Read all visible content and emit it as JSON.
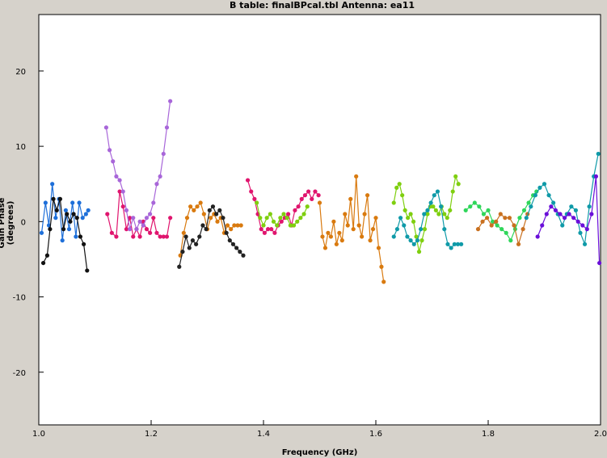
{
  "chart_data": {
    "type": "scatter",
    "title": "B table: finalBPcal.tbl   Antenna: ea11",
    "xlabel": "Frequency (GHz)",
    "ylabel": "Gain Phase (degrees)",
    "xlim": [
      1.0,
      2.0
    ],
    "ylim": [
      -27,
      27.5
    ],
    "xticks": [
      1.0,
      1.2,
      1.4,
      1.6,
      1.8,
      2.0
    ],
    "xtick_labels": [
      "1.0",
      "1.2",
      "1.4",
      "1.6",
      "1.8",
      "2.0"
    ],
    "yticks": [
      20,
      10,
      0,
      -10,
      -20
    ],
    "ytick_labels": [
      "20",
      "10",
      "0",
      "-10",
      "-20"
    ],
    "grid": false,
    "series": [
      {
        "color": "#1e6fd9",
        "x": [
          1.005,
          1.012,
          1.018,
          1.024,
          1.03,
          1.036,
          1.042,
          1.048,
          1.054,
          1.06,
          1.066,
          1.072,
          1.078,
          1.084,
          1.088
        ],
        "y": [
          -1.5,
          2.5,
          -0.5,
          5.0,
          0.5,
          3.0,
          -2.5,
          1.5,
          -1.0,
          2.5,
          -2.0,
          2.5,
          0.5,
          1.0,
          1.5
        ]
      },
      {
        "color": "#111111",
        "x": [
          1.008,
          1.015,
          1.02,
          1.026,
          1.032,
          1.038,
          1.044,
          1.05,
          1.056,
          1.062,
          1.068,
          1.074,
          1.08,
          1.086
        ],
        "y": [
          -5.5,
          -4.5,
          -1.0,
          3.0,
          1.5,
          3.0,
          -1.0,
          1.0,
          0.0,
          1.0,
          0.5,
          -2.0,
          -3.0,
          -6.5
        ]
      },
      {
        "color": "#e0156e",
        "x": [
          1.122,
          1.13,
          1.138,
          1.144,
          1.15,
          1.156,
          1.162,
          1.168,
          1.174,
          1.18,
          1.186,
          1.192,
          1.198,
          1.204,
          1.21,
          1.216,
          1.222,
          1.228,
          1.234
        ],
        "y": [
          1.0,
          -1.5,
          -2.0,
          4.0,
          2.0,
          -1.0,
          0.5,
          -2.0,
          -1.0,
          -2.0,
          0.0,
          -1.0,
          -1.5,
          0.5,
          -1.5,
          -2.0,
          -2.0,
          -2.0,
          0.5
        ]
      },
      {
        "color": "#a866d9",
        "x": [
          1.12,
          1.126,
          1.132,
          1.138,
          1.144,
          1.15,
          1.156,
          1.162,
          1.168,
          1.174,
          1.18,
          1.186,
          1.192,
          1.198,
          1.204,
          1.21,
          1.216,
          1.222,
          1.228,
          1.234
        ],
        "y": [
          12.5,
          9.5,
          8.0,
          6.0,
          5.5,
          4.0,
          1.5,
          -1.0,
          0.5,
          -1.0,
          0.0,
          -0.5,
          0.5,
          1.0,
          2.5,
          5.0,
          6.0,
          9.0,
          12.5,
          16.0
        ]
      },
      {
        "color": "#d97a0f",
        "x": [
          1.252,
          1.258,
          1.264,
          1.27,
          1.276,
          1.282,
          1.288,
          1.294,
          1.3,
          1.306,
          1.312,
          1.318,
          1.324,
          1.33,
          1.336,
          1.342,
          1.348,
          1.354,
          1.36
        ],
        "y": [
          -4.5,
          -1.5,
          0.5,
          2.0,
          1.5,
          2.0,
          2.5,
          1.0,
          -1.0,
          0.5,
          1.0,
          0.0,
          0.5,
          -1.5,
          -0.5,
          -1.0,
          -0.5,
          -0.5,
          -0.5
        ]
      },
      {
        "color": "#222222",
        "x": [
          1.25,
          1.256,
          1.262,
          1.268,
          1.274,
          1.28,
          1.286,
          1.292,
          1.298,
          1.304,
          1.31,
          1.316,
          1.322,
          1.328,
          1.334,
          1.34,
          1.346,
          1.352,
          1.358,
          1.364
        ],
        "y": [
          -6.0,
          -4.0,
          -2.0,
          -3.5,
          -2.5,
          -3.0,
          -2.0,
          -0.5,
          -1.0,
          1.5,
          2.0,
          1.0,
          1.5,
          0.5,
          -1.5,
          -2.5,
          -3.0,
          -3.5,
          -4.0,
          -4.5
        ]
      },
      {
        "color": "#e0156e",
        "x": [
          1.372,
          1.378,
          1.384,
          1.39,
          1.396,
          1.402,
          1.408,
          1.414,
          1.42,
          1.426,
          1.432,
          1.438,
          1.444,
          1.45,
          1.456,
          1.462,
          1.468,
          1.474,
          1.48,
          1.486,
          1.492,
          1.498
        ],
        "y": [
          5.5,
          4.0,
          3.0,
          1.0,
          -1.0,
          -1.5,
          -1.0,
          -1.0,
          -1.5,
          -0.5,
          0.0,
          0.5,
          1.0,
          -0.5,
          1.5,
          2.0,
          3.0,
          3.5,
          4.0,
          3.0,
          4.0,
          3.5
        ]
      },
      {
        "color": "#7fcf0f",
        "x": [
          1.388,
          1.394,
          1.4,
          1.406,
          1.412,
          1.418,
          1.424,
          1.43,
          1.436,
          1.442,
          1.448,
          1.454,
          1.46,
          1.466,
          1.472,
          1.478
        ],
        "y": [
          2.5,
          0.5,
          -0.5,
          0.5,
          1.0,
          0.0,
          -0.5,
          0.5,
          1.0,
          0.5,
          -0.5,
          -0.5,
          0.0,
          0.5,
          1.0,
          2.0
        ]
      },
      {
        "color": "#d97a0f",
        "x": [
          1.5,
          1.505,
          1.51,
          1.515,
          1.52,
          1.525,
          1.53,
          1.535,
          1.54,
          1.545,
          1.55,
          1.555,
          1.56,
          1.565,
          1.57,
          1.575,
          1.58,
          1.585,
          1.59,
          1.595,
          1.6,
          1.605,
          1.61,
          1.614
        ],
        "y": [
          2.5,
          -2.0,
          -3.5,
          -1.5,
          -2.0,
          0.0,
          -3.0,
          -1.5,
          -2.5,
          1.0,
          -0.5,
          3.0,
          -1.0,
          6.0,
          -0.5,
          -2.0,
          1.0,
          3.5,
          -2.5,
          -1.0,
          0.5,
          -3.5,
          -6.0,
          -8.0
        ]
      },
      {
        "color": "#7fcf0f",
        "x": [
          1.632,
          1.637,
          1.642,
          1.647,
          1.652,
          1.657,
          1.662,
          1.667,
          1.672,
          1.677,
          1.682,
          1.687,
          1.692,
          1.697,
          1.702,
          1.707,
          1.712,
          1.717,
          1.722,
          1.727,
          1.732,
          1.737,
          1.742,
          1.747
        ],
        "y": [
          2.5,
          4.5,
          5.0,
          3.5,
          1.5,
          0.5,
          1.0,
          0.0,
          -2.0,
          -4.0,
          -2.5,
          -1.0,
          1.0,
          2.0,
          2.0,
          1.5,
          1.0,
          2.0,
          1.0,
          0.5,
          1.5,
          4.0,
          6.0,
          5.0
        ]
      },
      {
        "color": "#0f9aa8",
        "x": [
          1.632,
          1.638,
          1.644,
          1.65,
          1.656,
          1.662,
          1.668,
          1.674,
          1.68,
          1.686,
          1.692,
          1.698,
          1.704,
          1.71,
          1.716,
          1.722,
          1.728,
          1.734,
          1.74,
          1.746,
          1.752
        ],
        "y": [
          -2.0,
          -1.0,
          0.5,
          -0.5,
          -2.0,
          -2.5,
          -3.0,
          -2.5,
          -1.0,
          1.0,
          1.5,
          2.5,
          3.5,
          4.0,
          2.0,
          -1.0,
          -3.0,
          -3.5,
          -3.0,
          -3.0,
          -3.0
        ]
      },
      {
        "color": "#2fd65a",
        "x": [
          1.76,
          1.768,
          1.776,
          1.784,
          1.792,
          1.8,
          1.808,
          1.816,
          1.824,
          1.832,
          1.84,
          1.848,
          1.856,
          1.864,
          1.872,
          1.88,
          1.886
        ],
        "y": [
          1.5,
          2.0,
          2.5,
          2.0,
          1.0,
          1.5,
          0.0,
          -0.5,
          -1.0,
          -1.5,
          -2.5,
          -1.0,
          0.5,
          1.5,
          2.5,
          3.5,
          4.0
        ]
      },
      {
        "color": "#c9701f",
        "x": [
          1.782,
          1.79,
          1.798,
          1.806,
          1.814,
          1.822,
          1.83,
          1.838,
          1.846,
          1.854,
          1.862,
          1.87
        ],
        "y": [
          -1.0,
          0.0,
          0.5,
          -0.5,
          0.0,
          1.0,
          0.5,
          0.5,
          -0.5,
          -3.0,
          -1.0,
          1.0
        ]
      },
      {
        "color": "#0f9aa8",
        "x": [
          1.868,
          1.876,
          1.884,
          1.892,
          1.9,
          1.908,
          1.916,
          1.924,
          1.932,
          1.94,
          1.948,
          1.956,
          1.964,
          1.972,
          1.98,
          1.988,
          1.996
        ],
        "y": [
          0.5,
          2.0,
          3.5,
          4.5,
          5.0,
          3.5,
          2.5,
          1.0,
          -0.5,
          1.0,
          2.0,
          1.5,
          -1.5,
          -3.0,
          2.0,
          6.0,
          9.0
        ]
      },
      {
        "color": "#6a0fd9",
        "x": [
          1.888,
          1.896,
          1.904,
          1.912,
          1.92,
          1.928,
          1.936,
          1.944,
          1.952,
          1.96,
          1.968,
          1.976,
          1.984,
          1.992,
          1.998
        ],
        "y": [
          -2.0,
          -0.5,
          1.0,
          2.0,
          1.5,
          1.0,
          0.5,
          1.0,
          0.5,
          0.0,
          -0.5,
          -1.0,
          1.0,
          6.0,
          -5.5
        ]
      }
    ]
  }
}
